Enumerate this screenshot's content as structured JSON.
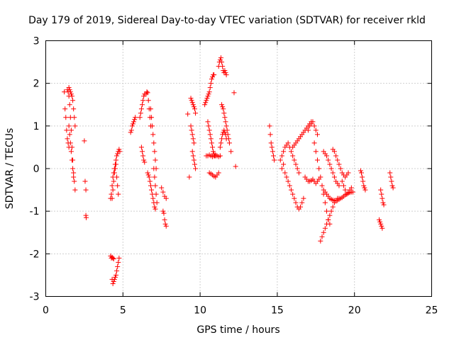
{
  "chart_data": {
    "type": "scatter",
    "title": "Day 179 of 2019, Sidereal Day-to-day VTEC variation (SDTVAR) for receiver rkld",
    "xlabel": "GPS time / hours",
    "ylabel": "SDTVAR / TECUs",
    "xlim": [
      0,
      25
    ],
    "ylim": [
      -3,
      3
    ],
    "xticks": [
      0,
      5,
      10,
      15,
      20,
      25
    ],
    "yticks": [
      -3,
      -2,
      -1,
      0,
      1,
      2,
      3
    ],
    "xtick_labels": [
      "0",
      "5",
      "10",
      "15",
      "20",
      "25"
    ],
    "ytick_labels": [
      "-3",
      "-2",
      "-1",
      "0",
      "1",
      "2",
      "3"
    ],
    "grid": true,
    "marker": "+",
    "color": "#ff0000",
    "segments": [
      {
        "x": [
          1.2,
          1.25,
          1.3,
          1.35,
          1.4,
          1.45,
          1.5
        ],
        "y": [
          1.8,
          1.4,
          1.2,
          0.9,
          0.7,
          0.6,
          0.5
        ]
      },
      {
        "x": [
          1.4,
          1.45,
          1.5,
          1.55,
          1.6,
          1.65,
          1.7,
          1.75,
          1.8,
          1.85,
          1.9
        ],
        "y": [
          1.85,
          1.8,
          1.7,
          1.5,
          1.2,
          0.9,
          0.5,
          0.2,
          -0.1,
          -0.3,
          -0.5
        ]
      },
      {
        "x": [
          1.5,
          1.55,
          1.6,
          1.65,
          1.7,
          1.75,
          1.8,
          1.85,
          1.9
        ],
        "y": [
          1.9,
          1.85,
          1.8,
          1.75,
          1.7,
          1.6,
          1.4,
          1.2,
          1.0
        ]
      },
      {
        "x": [
          1.5,
          1.55,
          1.6,
          1.65,
          1.7,
          1.75,
          1.8
        ],
        "y": [
          1.0,
          0.8,
          0.6,
          0.4,
          0.2,
          0.0,
          -0.2
        ]
      },
      {
        "x": [
          2.5,
          2.55,
          2.6
        ],
        "y": [
          0.65,
          -0.3,
          -0.5
        ]
      },
      {
        "x": [
          2.6,
          2.62
        ],
        "y": [
          -1.1,
          -1.15
        ]
      },
      {
        "x": [
          4.2,
          4.25,
          4.3,
          4.35,
          4.4,
          4.45,
          4.5,
          4.55,
          4.6,
          4.65,
          4.7,
          4.75,
          4.8
        ],
        "y": [
          -0.7,
          -0.6,
          -0.4,
          -0.2,
          -0.1,
          0.0,
          0.1,
          0.2,
          0.3,
          0.35,
          0.4,
          0.45,
          0.4
        ]
      },
      {
        "x": [
          4.3,
          4.35,
          4.4,
          4.45,
          4.5,
          4.55,
          4.6,
          4.65,
          4.7
        ],
        "y": [
          -0.7,
          -0.5,
          -0.3,
          -0.1,
          0.0,
          0.1,
          -0.2,
          -0.4,
          -0.6
        ]
      },
      {
        "x": [
          4.2,
          4.25,
          4.3,
          4.35,
          4.4
        ],
        "y": [
          -2.05,
          -2.1,
          -2.08,
          -2.1,
          -2.12
        ]
      },
      {
        "x": [
          4.3,
          4.35,
          4.4,
          4.45,
          4.5,
          4.55,
          4.6,
          4.65,
          4.7,
          4.75
        ],
        "y": [
          -2.6,
          -2.7,
          -2.65,
          -2.6,
          -2.55,
          -2.5,
          -2.4,
          -2.3,
          -2.2,
          -2.1
        ]
      },
      {
        "x": [
          5.5,
          5.55,
          5.6,
          5.65,
          5.7,
          5.75,
          5.8
        ],
        "y": [
          0.85,
          0.9,
          1.0,
          1.05,
          1.1,
          1.15,
          1.2
        ]
      },
      {
        "x": [
          6.1,
          6.15,
          6.2,
          6.25,
          6.3,
          6.35,
          6.4
        ],
        "y": [
          1.2,
          1.3,
          1.4,
          1.5,
          1.6,
          1.7,
          1.75
        ]
      },
      {
        "x": [
          6.2,
          6.25,
          6.3,
          6.35,
          6.4
        ],
        "y": [
          0.5,
          0.4,
          0.3,
          0.2,
          0.15
        ]
      },
      {
        "x": [
          6.5,
          6.55,
          6.6,
          6.65,
          6.7,
          6.75,
          6.8
        ],
        "y": [
          1.75,
          1.8,
          1.78,
          1.6,
          1.4,
          1.2,
          1.0
        ]
      },
      {
        "x": [
          6.8,
          6.85,
          6.9,
          6.95,
          7.0,
          7.05,
          7.1,
          7.15
        ],
        "y": [
          1.4,
          1.2,
          1.0,
          0.8,
          0.6,
          0.4,
          0.2,
          0.0
        ]
      },
      {
        "x": [
          6.6,
          6.65,
          6.7,
          6.75,
          6.8,
          6.85,
          6.9,
          6.95,
          7.0,
          7.05,
          7.1
        ],
        "y": [
          -0.1,
          -0.15,
          -0.2,
          -0.3,
          -0.4,
          -0.5,
          -0.6,
          -0.7,
          -0.8,
          -0.9,
          -0.95
        ]
      },
      {
        "x": [
          7.0,
          7.05,
          7.1,
          7.15,
          7.2
        ],
        "y": [
          0.0,
          -0.2,
          -0.4,
          -0.6,
          -0.8
        ]
      },
      {
        "x": [
          7.5,
          7.6,
          7.7,
          7.8
        ],
        "y": [
          -0.45,
          -0.55,
          -0.65,
          -0.7
        ]
      },
      {
        "x": [
          7.6,
          7.65,
          7.7,
          7.75,
          7.8
        ],
        "y": [
          -1.0,
          -1.05,
          -1.2,
          -1.3,
          -1.35
        ]
      },
      {
        "x": [
          9.2,
          9.3
        ],
        "y": [
          1.28,
          -0.2
        ]
      },
      {
        "x": [
          9.4,
          9.45,
          9.5,
          9.55,
          9.6,
          9.65,
          9.7
        ],
        "y": [
          1.65,
          1.6,
          1.55,
          1.5,
          1.45,
          1.4,
          1.3
        ]
      },
      {
        "x": [
          9.4,
          9.45,
          9.5,
          9.55,
          9.6
        ],
        "y": [
          1.0,
          0.9,
          0.8,
          0.7,
          0.6
        ]
      },
      {
        "x": [
          9.5,
          9.55,
          9.6,
          9.65,
          9.7
        ],
        "y": [
          0.4,
          0.3,
          0.2,
          0.1,
          0.0
        ]
      },
      {
        "x": [
          10.3,
          10.35,
          10.4,
          10.45,
          10.5,
          10.55,
          10.6,
          10.65,
          10.7,
          10.75,
          10.8,
          10.85,
          10.9
        ],
        "y": [
          1.5,
          1.55,
          1.6,
          1.65,
          1.7,
          1.75,
          1.8,
          1.9,
          2.0,
          2.1,
          2.15,
          2.2,
          2.2
        ]
      },
      {
        "x": [
          10.5,
          10.55,
          10.6,
          10.65,
          10.7,
          10.75,
          10.8,
          10.85,
          10.9,
          10.95,
          11.0
        ],
        "y": [
          1.1,
          1.0,
          0.9,
          0.8,
          0.7,
          0.6,
          0.5,
          0.4,
          0.35,
          0.3,
          0.3
        ]
      },
      {
        "x": [
          10.4,
          10.5,
          10.6,
          10.7,
          10.8,
          10.9,
          11.0,
          11.1,
          11.2,
          11.3
        ],
        "y": [
          0.3,
          0.3,
          0.32,
          0.3,
          0.28,
          0.3,
          0.32,
          0.3,
          0.28,
          0.3
        ]
      },
      {
        "x": [
          10.6,
          10.7,
          10.8,
          10.9,
          11.0,
          11.1,
          11.2
        ],
        "y": [
          -0.1,
          -0.12,
          -0.15,
          -0.18,
          -0.2,
          -0.15,
          -0.1
        ]
      },
      {
        "x": [
          11.2,
          11.25,
          11.3,
          11.35,
          11.4,
          11.45,
          11.5,
          11.55,
          11.6,
          11.65,
          11.7
        ],
        "y": [
          2.4,
          2.5,
          2.55,
          2.6,
          2.5,
          2.4,
          2.3,
          2.25,
          2.3,
          2.25,
          2.2
        ]
      },
      {
        "x": [
          11.4,
          11.45,
          11.5,
          11.55,
          11.6,
          11.65,
          11.7,
          11.75,
          11.8,
          11.85,
          11.9,
          12.0
        ],
        "y": [
          1.5,
          1.45,
          1.4,
          1.3,
          1.2,
          1.1,
          1.0,
          0.9,
          0.8,
          0.7,
          0.6,
          0.4
        ]
      },
      {
        "x": [
          11.3,
          11.35,
          11.4,
          11.45,
          11.5,
          11.55,
          11.6,
          11.65,
          11.7
        ],
        "y": [
          0.5,
          0.6,
          0.7,
          0.8,
          0.85,
          0.9,
          0.85,
          0.8,
          0.7
        ]
      },
      {
        "x": [
          12.2,
          12.3
        ],
        "y": [
          1.78,
          0.05
        ]
      },
      {
        "x": [
          14.5,
          14.55,
          14.6,
          14.65,
          14.7,
          14.75,
          14.8
        ],
        "y": [
          1.0,
          0.8,
          0.6,
          0.5,
          0.4,
          0.3,
          0.2
        ]
      },
      {
        "x": [
          15.2,
          15.3,
          15.4,
          15.5,
          15.6,
          15.7,
          15.8,
          15.9,
          16.0,
          16.1,
          16.2,
          16.3,
          16.4
        ],
        "y": [
          0.2,
          0.3,
          0.4,
          0.5,
          0.55,
          0.6,
          0.5,
          0.4,
          0.3,
          0.2,
          0.1,
          0.0,
          -0.1
        ]
      },
      {
        "x": [
          15.3,
          15.4,
          15.5,
          15.6,
          15.7,
          15.8,
          15.9,
          16.0,
          16.1,
          16.2,
          16.3,
          16.4,
          16.5,
          16.6,
          16.7
        ],
        "y": [
          0.0,
          0.1,
          -0.1,
          -0.2,
          -0.3,
          -0.4,
          -0.5,
          -0.6,
          -0.7,
          -0.8,
          -0.9,
          -0.95,
          -0.9,
          -0.8,
          -0.7
        ]
      },
      {
        "x": [
          16.0,
          16.1,
          16.2,
          16.3,
          16.4,
          16.5,
          16.6,
          16.7,
          16.8,
          16.9,
          17.0,
          17.1,
          17.2
        ],
        "y": [
          0.5,
          0.55,
          0.6,
          0.65,
          0.7,
          0.75,
          0.8,
          0.85,
          0.9,
          0.95,
          1.0,
          1.05,
          1.1
        ]
      },
      {
        "x": [
          16.8,
          16.9,
          17.0,
          17.1,
          17.2,
          17.3,
          17.4,
          17.5,
          17.6,
          17.7
        ],
        "y": [
          -0.2,
          -0.25,
          -0.3,
          -0.3,
          -0.28,
          -0.25,
          -0.3,
          -0.35,
          -0.3,
          -0.25
        ]
      },
      {
        "x": [
          17.0,
          17.1,
          17.2,
          17.3,
          17.4,
          17.5,
          17.6
        ],
        "y": [
          0.9,
          1.0,
          1.05,
          1.1,
          1.0,
          0.9,
          0.8
        ]
      },
      {
        "x": [
          17.4,
          17.5,
          17.6,
          17.7,
          17.8,
          17.9,
          18.0,
          18.1,
          18.2,
          18.3,
          18.4
        ],
        "y": [
          0.6,
          0.4,
          0.2,
          0.0,
          -0.2,
          -0.4,
          -0.6,
          -0.8,
          -1.0,
          -1.2,
          -1.3
        ]
      },
      {
        "x": [
          17.8,
          17.9,
          18.0,
          18.1,
          18.2,
          18.3,
          18.4,
          18.5,
          18.6,
          18.7,
          18.8,
          18.9,
          19.0
        ],
        "y": [
          -1.7,
          -1.6,
          -1.5,
          -1.4,
          -1.3,
          -1.2,
          -1.1,
          -1.0,
          -0.9,
          -0.8,
          -0.75,
          -0.7,
          -0.7
        ]
      },
      {
        "x": [
          18.0,
          18.1,
          18.2,
          18.3,
          18.4,
          18.5,
          18.6,
          18.7,
          18.8,
          18.9,
          19.0,
          19.1,
          19.2,
          19.3,
          19.4,
          19.5,
          19.6,
          19.7,
          19.8,
          19.9
        ],
        "y": [
          -0.5,
          -0.55,
          -0.6,
          -0.65,
          -0.7,
          -0.72,
          -0.74,
          -0.75,
          -0.76,
          -0.75,
          -0.72,
          -0.7,
          -0.68,
          -0.65,
          -0.62,
          -0.6,
          -0.58,
          -0.56,
          -0.55,
          -0.55
        ]
      },
      {
        "x": [
          18.0,
          18.1,
          18.2,
          18.3,
          18.4,
          18.5,
          18.6,
          18.7,
          18.8,
          18.9,
          19.0
        ],
        "y": [
          0.4,
          0.35,
          0.3,
          0.2,
          0.1,
          0.0,
          -0.1,
          -0.2,
          -0.3,
          -0.35,
          -0.4
        ]
      },
      {
        "x": [
          18.6,
          18.7,
          18.8,
          18.9,
          19.0,
          19.1,
          19.2,
          19.3,
          19.4,
          19.5,
          19.6
        ],
        "y": [
          0.45,
          0.4,
          0.3,
          0.2,
          0.1,
          0.0,
          -0.1,
          -0.15,
          -0.2,
          -0.15,
          -0.1
        ]
      },
      {
        "x": [
          19.2,
          19.3,
          19.4,
          19.5,
          19.6,
          19.7,
          19.8
        ],
        "y": [
          -0.3,
          -0.4,
          -0.5,
          -0.6,
          -0.55,
          -0.5,
          -0.45
        ]
      },
      {
        "x": [
          20.4,
          20.45,
          20.5,
          20.55,
          20.6,
          20.65,
          20.7
        ],
        "y": [
          -0.05,
          -0.1,
          -0.2,
          -0.3,
          -0.4,
          -0.45,
          -0.5
        ]
      },
      {
        "x": [
          21.7,
          21.75,
          21.8,
          21.85,
          21.9
        ],
        "y": [
          -0.5,
          -0.6,
          -0.7,
          -0.8,
          -0.85
        ]
      },
      {
        "x": [
          21.6,
          21.65,
          21.7,
          21.75,
          21.8
        ],
        "y": [
          -1.2,
          -1.25,
          -1.3,
          -1.35,
          -1.4
        ]
      },
      {
        "x": [
          22.3,
          22.35,
          22.4,
          22.45,
          22.5
        ],
        "y": [
          -0.1,
          -0.2,
          -0.3,
          -0.4,
          -0.45
        ]
      }
    ]
  }
}
